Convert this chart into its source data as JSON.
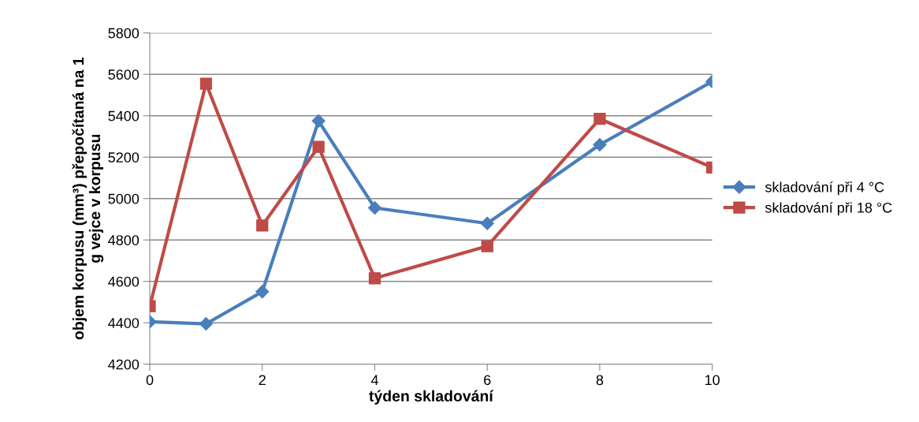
{
  "chart_data": {
    "type": "line",
    "xlabel": "týden skladování",
    "ylabel": "objem korpusu (mm³) přepočítaná na 1\ng vejce v korpusu",
    "x": [
      0,
      1,
      2,
      3,
      4,
      6,
      8,
      10
    ],
    "series": [
      {
        "name": "skladování při 4 °C",
        "color": "#4a7ebb",
        "marker": "diamond",
        "values": [
          4405,
          4395,
          4550,
          5375,
          4955,
          4880,
          5260,
          5565
        ]
      },
      {
        "name": "skladování při 18 °C",
        "color": "#be4b48",
        "marker": "square",
        "values": [
          4480,
          5555,
          4870,
          5250,
          4615,
          4770,
          5385,
          5150
        ]
      }
    ],
    "xlim": [
      0,
      10
    ],
    "xticks": [
      0,
      2,
      4,
      6,
      8,
      10
    ],
    "ylim": [
      4200,
      5800
    ],
    "yticks": [
      4200,
      4400,
      4600,
      4800,
      5000,
      5200,
      5400,
      5600,
      5800
    ],
    "grid": "y",
    "legend": "right",
    "line_style": "solid"
  }
}
